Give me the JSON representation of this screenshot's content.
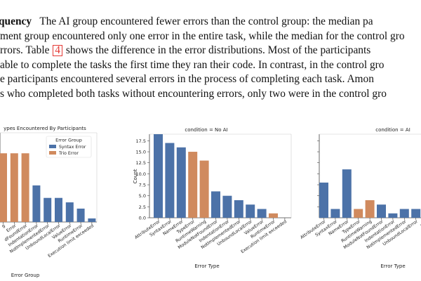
{
  "paragraph": {
    "lines": [
      {
        "bold": "quency",
        "rest": "The AI group encountered fewer errors than the control group: the median pa"
      },
      {
        "rest": "ment group encountered only one error in the entire task, while the median for the control gro"
      },
      {
        "before_ref": "rrors. Table ",
        "ref": "4",
        "after_ref": " shows the difference in the error distributions. Most of the participants"
      },
      {
        "rest": "able to complete the tasks the first time they ran their code. In contrast, in the control gro"
      },
      {
        "rest": "e participants encountered several errors in the process of completing each task. Amon"
      },
      {
        "rest": "s who completed both tasks without encountering errors, only two were in the control gro"
      }
    ]
  },
  "colors": {
    "blue": "#4C72A8",
    "orange": "#D08A5E",
    "axis": "#444444",
    "grid": "#e6e6e6",
    "ref": "#e53935"
  },
  "chart_data": [
    {
      "type": "bar",
      "title": "ypes Encountered By Participants",
      "xlabel": "Error Group",
      "legend_title": "Error Group",
      "legend": [
        {
          "name": "Syntax Error",
          "color": "#4C72A8"
        },
        {
          "name": "Trio Error",
          "color": "#D08A5E"
        }
      ],
      "ylim": [
        0,
        10
      ],
      "categories": [
        "g",
        "Error",
        "dFoundError",
        "IndentationError",
        "NotImplementedError",
        "UnboundLocalError",
        "ValueError",
        "RuntimeError",
        "Execution limit exceeded"
      ],
      "values": [
        7.7,
        7.7,
        7.7,
        4.1,
        2.7,
        2.7,
        2.2,
        1.5,
        0.4
      ],
      "groups": [
        "trio",
        "trio",
        "trio",
        "syntax",
        "syntax",
        "syntax",
        "syntax",
        "syntax",
        "syntax"
      ]
    },
    {
      "type": "bar",
      "title": "condition = No AI",
      "xlabel": "Error Type",
      "ylabel": "Count",
      "ylim": [
        0,
        19
      ],
      "yticks": [
        "0.0",
        "2.5",
        "5.0",
        "7.5",
        "10.0",
        "12.5",
        "15.0",
        "17.5"
      ],
      "categories": [
        "AttributeError",
        "SyntaxError",
        "NameError",
        "TypeError",
        "RuntimeWarning",
        "ModuleNotFoundError",
        "IndentationError",
        "NotImplementedError",
        "UnboundLocalError",
        "ValueError",
        "RuntimeError",
        "Execution limit exceeded"
      ],
      "values": [
        19,
        17,
        16,
        15,
        13,
        6,
        5,
        4,
        3,
        2,
        1,
        0
      ],
      "groups": [
        "syntax",
        "syntax",
        "syntax",
        "trio",
        "trio",
        "syntax",
        "syntax",
        "syntax",
        "syntax",
        "syntax",
        "trio",
        "syntax"
      ]
    },
    {
      "type": "bar",
      "title": "condition = AI",
      "xlabel": "Error Type",
      "ylim": [
        0,
        19
      ],
      "categories": [
        "AttributeError",
        "SyntaxError",
        "NameError",
        "TypeError",
        "RuntimeWarning",
        "ModuleNotFoundError",
        "IndentationError",
        "NotImplementedError",
        "UnboundLocalError",
        "Valu"
      ],
      "values": [
        8,
        2,
        11,
        2,
        4,
        3,
        1,
        2,
        2,
        2
      ],
      "groups": [
        "syntax",
        "syntax",
        "syntax",
        "trio",
        "trio",
        "syntax",
        "syntax",
        "syntax",
        "syntax",
        "syntax"
      ]
    }
  ]
}
